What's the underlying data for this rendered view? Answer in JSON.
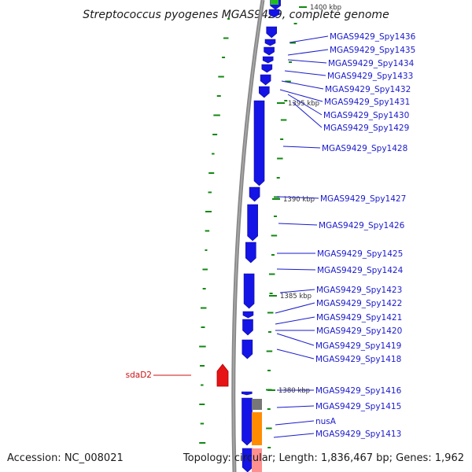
{
  "header": {
    "title": "Streptococcus pyogenes MGAS9429, complete genome"
  },
  "footer": {
    "accession": "Accession: NC_008021",
    "topology": "Topology: circular; Length: 1,836,467 bp; Genes: 1,962"
  },
  "colors": {
    "backbone": "#888888",
    "forward_gene": "#1414e6",
    "highlight_gene": "#e61414",
    "gc_ticks": "#118811",
    "leader_line_blue": "#1a1acc",
    "leader_line_red": "#cc1111",
    "gray_block": "#777777",
    "orange_block": "#ff8c00"
  },
  "ruler": {
    "tick_labels": [
      "1400 kbp",
      "1395 kbp",
      "1390 kbp",
      "1385 kbp",
      "1380 kbp"
    ]
  },
  "gene_labels": [
    "MGAS9429_Spy1436",
    "MGAS9429_Spy1435",
    "MGAS9429_Spy1434",
    "MGAS9429_Spy1433",
    "MGAS9429_Spy1432",
    "MGAS9429_Spy1431",
    "MGAS9429_Spy1430",
    "MGAS9429_Spy1429",
    "MGAS9429_Spy1428",
    "MGAS9429_Spy1427",
    "MGAS9429_Spy1426",
    "MGAS9429_Spy1425",
    "MGAS9429_Spy1424",
    "MGAS9429_Spy1423",
    "MGAS9429_Spy1422",
    "MGAS9429_Spy1421",
    "MGAS9429_Spy1420",
    "MGAS9429_Spy1419",
    "MGAS9429_Spy1418",
    "MGAS9429_Spy1416",
    "MGAS9429_Spy1415",
    "nusA",
    "MGAS9429_Spy1413"
  ],
  "highlight_label": "sdaD2"
}
